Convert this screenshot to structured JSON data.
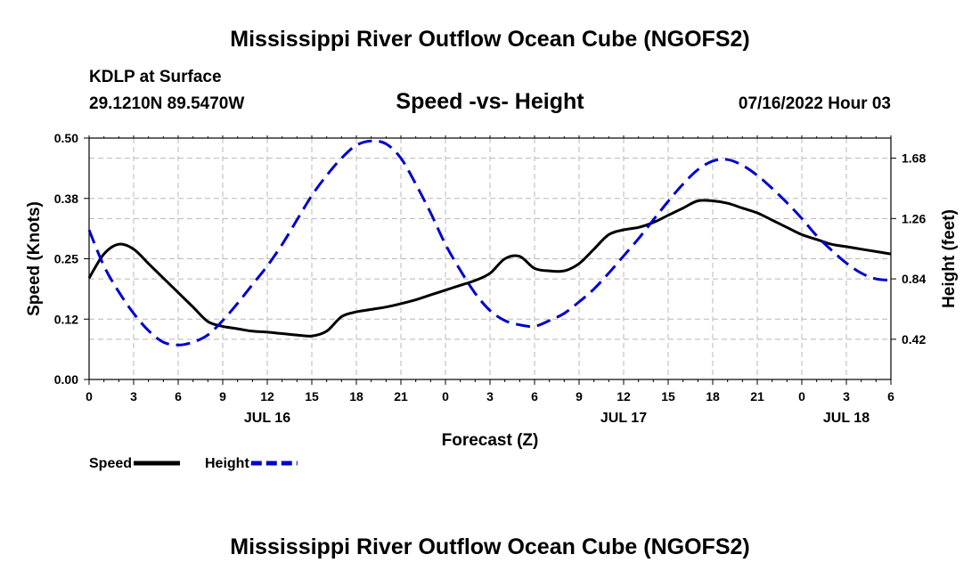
{
  "header": {
    "title": "Mississippi River Outflow Ocean Cube (NGOFS2)",
    "station": "KDLP at Surface",
    "coords": "29.1210N  89.5470W",
    "subtitle": "Speed -vs- Height",
    "datetime": "07/16/2022 Hour 03"
  },
  "footer": {
    "title": "Mississippi River Outflow Ocean Cube (NGOFS2)"
  },
  "chart_data": {
    "type": "line",
    "xlabel": "Forecast (Z)",
    "ylabel_left": "Speed (Knots)",
    "ylabel_right": "Height (feet)",
    "x_range": [
      0,
      54
    ],
    "x_tick_labels": [
      "0",
      "3",
      "6",
      "9",
      "12",
      "15",
      "18",
      "21",
      "0",
      "3",
      "6",
      "9",
      "12",
      "15",
      "18",
      "21",
      "0",
      "3",
      "6"
    ],
    "day_labels": [
      {
        "text": "JUL 16",
        "hour": 12
      },
      {
        "text": "JUL 17",
        "hour": 36
      },
      {
        "text": "JUL 18",
        "hour": 51
      }
    ],
    "ylim_left": [
      0,
      0.5
    ],
    "left_ticks": [
      {
        "value": 0.0,
        "label": "0.00"
      },
      {
        "value": 0.125,
        "label": "0.12"
      },
      {
        "value": 0.25,
        "label": "0.25"
      },
      {
        "value": 0.375,
        "label": "0.38"
      },
      {
        "value": 0.5,
        "label": "0.50"
      }
    ],
    "ylim_right": [
      0.14,
      1.82
    ],
    "right_ticks": [
      {
        "value": 0.42,
        "label": "0.42"
      },
      {
        "value": 0.84,
        "label": "0.84"
      },
      {
        "value": 1.26,
        "label": "1.26"
      },
      {
        "value": 1.68,
        "label": "1.68"
      }
    ],
    "grid": true,
    "legend": [
      {
        "name": "Speed",
        "color": "#000000",
        "style": "solid"
      },
      {
        "name": "Height",
        "color": "#0000cc",
        "style": "dashed"
      }
    ],
    "series": [
      {
        "name": "Speed",
        "axis": "left",
        "color": "#000000",
        "style": "solid",
        "x": [
          0,
          1,
          2,
          3,
          4,
          5,
          6,
          7,
          8,
          9,
          10,
          11,
          12,
          13,
          14,
          15,
          16,
          17,
          18,
          19,
          20,
          21,
          22,
          23,
          24,
          25,
          26,
          27,
          28,
          29,
          30,
          31,
          32,
          33,
          34,
          35,
          36,
          37,
          38,
          39,
          40,
          41,
          42,
          43,
          44,
          45,
          46,
          47,
          48,
          49,
          50,
          51,
          52,
          53,
          54
        ],
        "values": [
          0.21,
          0.26,
          0.28,
          0.27,
          0.24,
          0.21,
          0.18,
          0.15,
          0.12,
          0.11,
          0.105,
          0.1,
          0.098,
          0.095,
          0.092,
          0.09,
          0.1,
          0.13,
          0.14,
          0.145,
          0.15,
          0.157,
          0.165,
          0.175,
          0.185,
          0.195,
          0.205,
          0.22,
          0.25,
          0.255,
          0.23,
          0.225,
          0.225,
          0.24,
          0.27,
          0.3,
          0.31,
          0.315,
          0.325,
          0.34,
          0.355,
          0.37,
          0.37,
          0.365,
          0.355,
          0.345,
          0.33,
          0.315,
          0.3,
          0.29,
          0.28,
          0.275,
          0.27,
          0.265,
          0.26
        ]
      },
      {
        "name": "Height",
        "axis": "right",
        "color": "#0000cc",
        "style": "dashed",
        "x": [
          0,
          1,
          2,
          3,
          4,
          5,
          6,
          7,
          8,
          9,
          10,
          11,
          12,
          13,
          14,
          15,
          16,
          17,
          18,
          19,
          20,
          21,
          22,
          23,
          24,
          25,
          26,
          27,
          28,
          29,
          30,
          31,
          32,
          33,
          34,
          35,
          36,
          37,
          38,
          39,
          40,
          41,
          42,
          43,
          44,
          45,
          46,
          47,
          48,
          49,
          50,
          51,
          52,
          53,
          54
        ],
        "values": [
          1.18,
          0.93,
          0.75,
          0.6,
          0.48,
          0.4,
          0.38,
          0.4,
          0.45,
          0.55,
          0.67,
          0.8,
          0.93,
          1.08,
          1.25,
          1.42,
          1.56,
          1.68,
          1.77,
          1.8,
          1.78,
          1.68,
          1.5,
          1.3,
          1.08,
          0.9,
          0.74,
          0.62,
          0.55,
          0.52,
          0.51,
          0.55,
          0.6,
          0.68,
          0.77,
          0.88,
          1.0,
          1.12,
          1.25,
          1.38,
          1.5,
          1.6,
          1.66,
          1.67,
          1.63,
          1.56,
          1.47,
          1.37,
          1.26,
          1.14,
          1.04,
          0.95,
          0.88,
          0.84,
          0.83
        ]
      }
    ]
  }
}
